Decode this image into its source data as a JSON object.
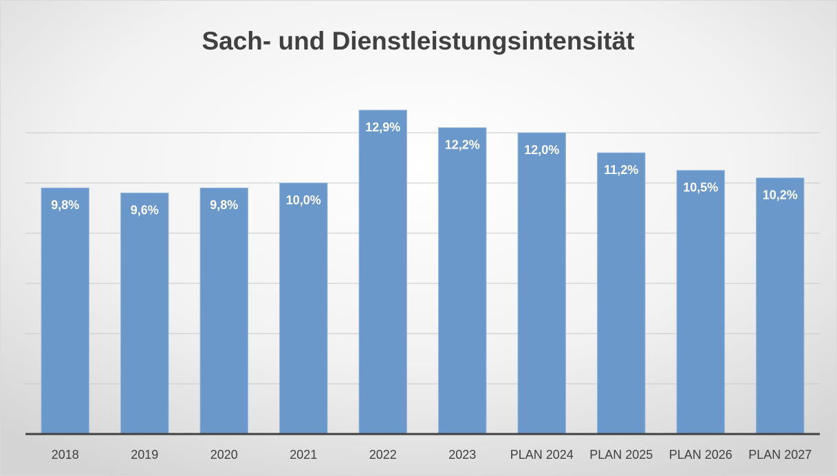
{
  "chart_data": {
    "type": "bar",
    "title": "Sach- und Dienstleistungsintensität",
    "categories": [
      "2018",
      "2019",
      "2020",
      "2021",
      "2022",
      "2023",
      "PLAN 2024",
      "PLAN 2025",
      "PLAN 2026",
      "PLAN 2027"
    ],
    "values": [
      9.8,
      9.6,
      9.8,
      10.0,
      12.9,
      12.2,
      12.0,
      11.2,
      10.5,
      10.2
    ],
    "value_labels": [
      "9,8%",
      "9,6%",
      "9,8%",
      "10,0%",
      "12,9%",
      "12,2%",
      "12,0%",
      "11,2%",
      "10,5%",
      "10,2%"
    ],
    "color": "#6b98cb",
    "ylim": [
      0,
      14
    ],
    "yticks": [
      2,
      4,
      6,
      8,
      10,
      12
    ],
    "grid": true
  }
}
